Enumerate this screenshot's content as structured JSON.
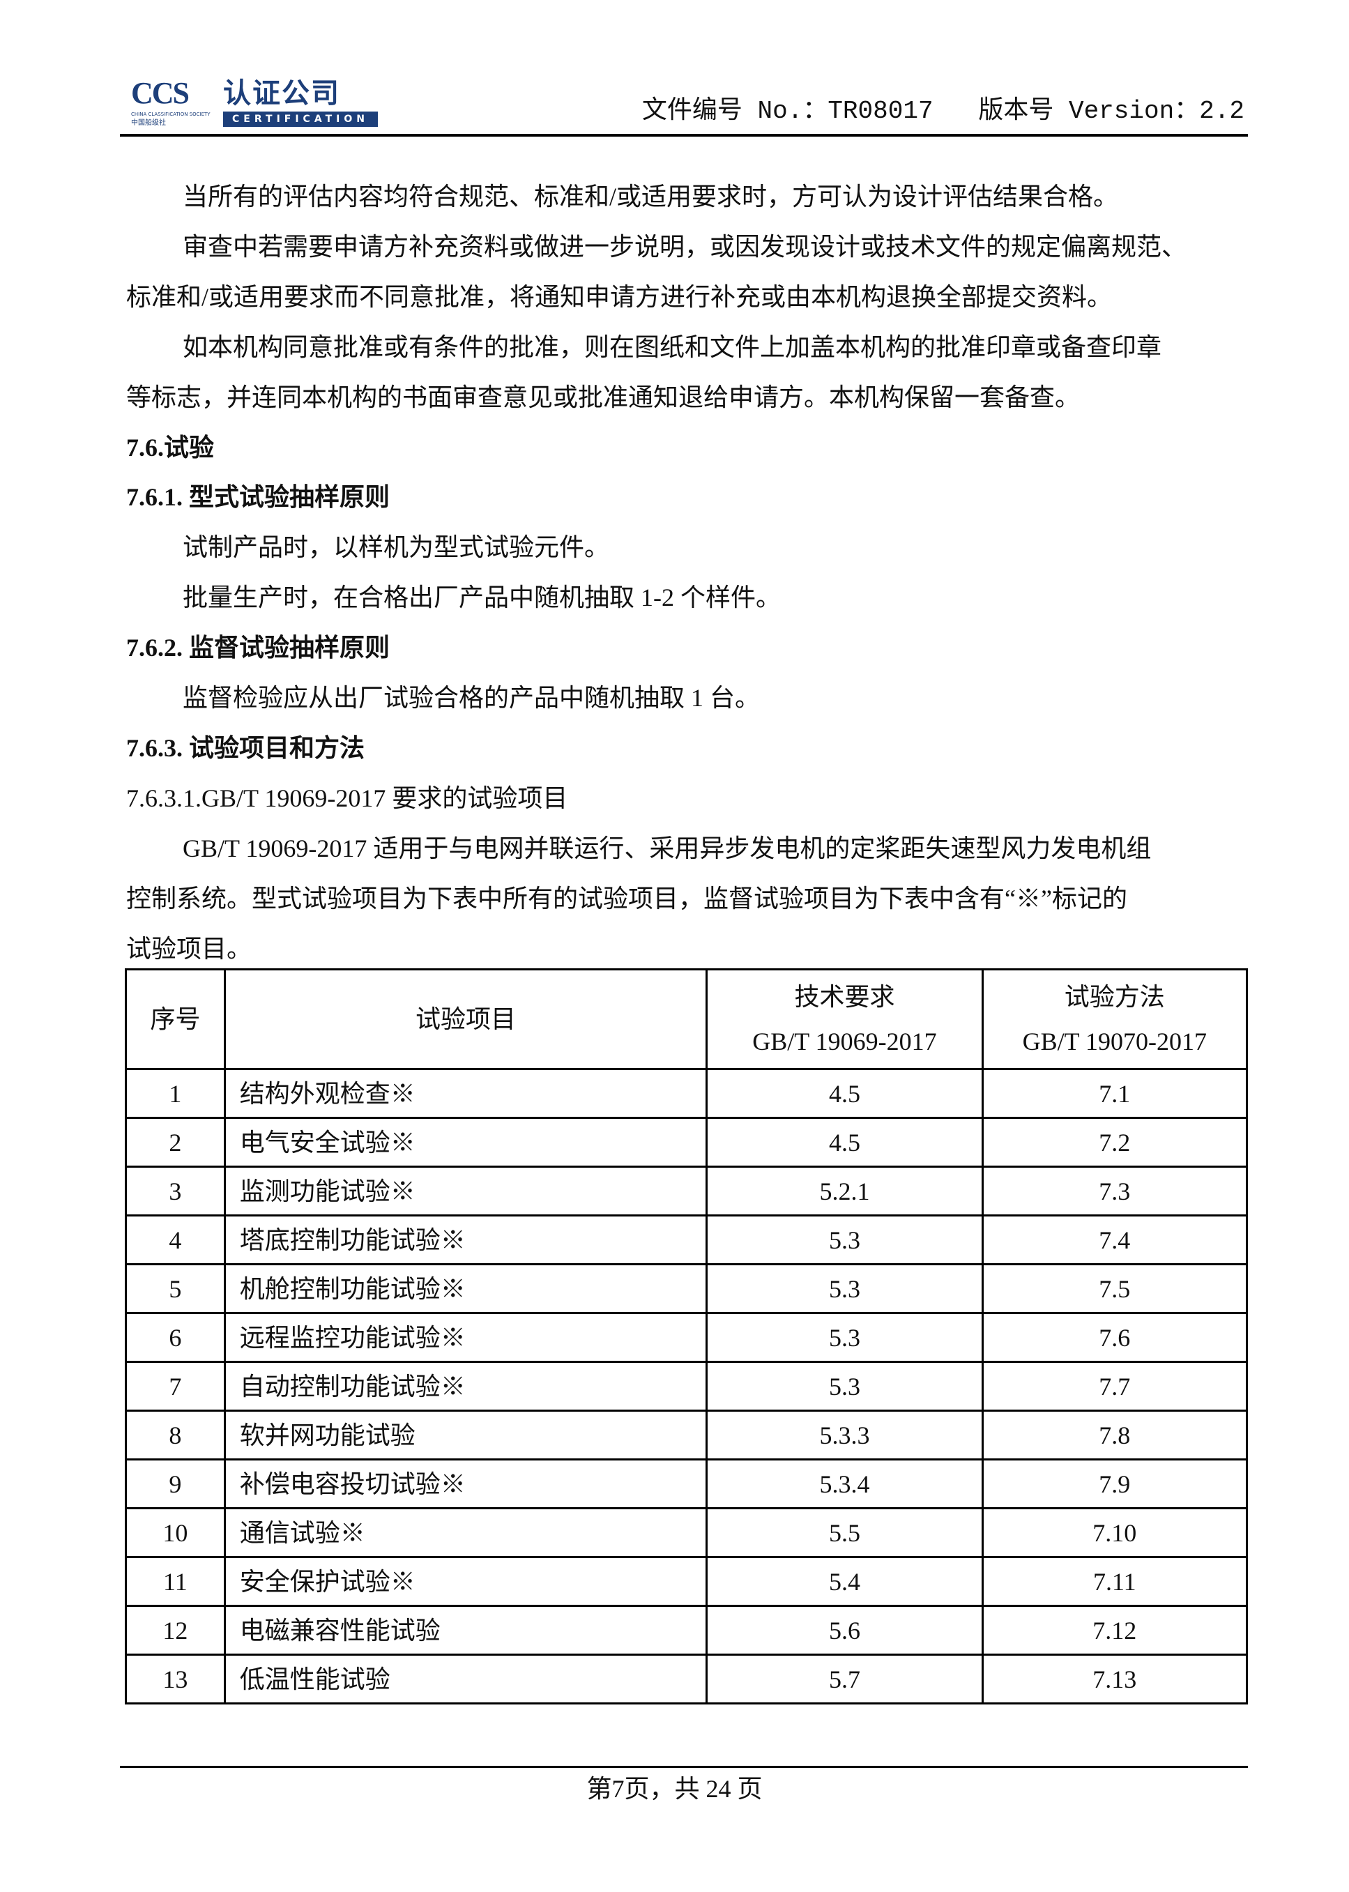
{
  "header": {
    "logo": {
      "ccs": "CCS",
      "name_cn": "认证公司",
      "name_en": "CERTIFICATION",
      "society_en": "CHINA CLASSIFICATION SOCIETY",
      "society_cn": "中国船级社"
    },
    "doc_info": "文件编号 No.：TR08017   版本号 Version：2.2"
  },
  "body": [
    {
      "text": "当所有的评估内容均符合规范、标准和/或适用要求时，方可认为设计评估结果合格。",
      "style": "ind"
    },
    {
      "text": "审查中若需要申请方补充资料或做进一步说明，或因发现设计或技术文件的规定偏离规范、",
      "style": "ind"
    },
    {
      "text": "标准和/或适用要求而不同意批准，将通知申请方进行补充或由本机构退换全部提交资料。",
      "style": "noind"
    },
    {
      "text": "如本机构同意批准或有条件的批准，则在图纸和文件上加盖本机构的批准印章或备查印章",
      "style": "ind"
    },
    {
      "text": "等标志，并连同本机构的书面审查意见或批准通知退给申请方。本机构保留一套备查。",
      "style": "noind"
    },
    {
      "text": "7.6.试验",
      "style": "heading"
    },
    {
      "text": "7.6.1.  型式试验抽样原则",
      "style": "heading"
    },
    {
      "text": "试制产品时，以样机为型式试验元件。",
      "style": "ind"
    },
    {
      "text": "批量生产时，在合格出厂产品中随机抽取 1-2 个样件。",
      "style": "ind"
    },
    {
      "text": "7.6.2.  监督试验抽样原则",
      "style": "heading"
    },
    {
      "text": "监督检验应从出厂试验合格的产品中随机抽取 1  台。",
      "style": "ind"
    },
    {
      "text": "7.6.3.  试验项目和方法",
      "style": "heading"
    },
    {
      "text": "7.6.3.1.GB/T 19069-2017  要求的试验项目",
      "style": "noind"
    },
    {
      "text": "GB/T 19069-2017 适用于与电网并联运行、采用异步发电机的定桨距失速型风力发电机组",
      "style": "ind"
    },
    {
      "text": "控制系统。型式试验项目为下表中所有的试验项目，监督试验项目为下表中含有“※”标记的",
      "style": "noind"
    },
    {
      "text": "试验项目。",
      "style": "noind"
    }
  ],
  "table": {
    "headers": {
      "no": "序号",
      "item": "试验项目",
      "req_title": "技术要求",
      "req_std": "GB/T 19069-2017",
      "method_title": "试验方法",
      "method_std": "GB/T 19070-2017"
    },
    "rows": [
      [
        "1",
        "结构外观检查※",
        "4.5",
        "7.1"
      ],
      [
        "2",
        "电气安全试验※",
        "4.5",
        "7.2"
      ],
      [
        "3",
        "监测功能试验※",
        "5.2.1",
        "7.3"
      ],
      [
        "4",
        "塔底控制功能试验※",
        "5.3",
        "7.4"
      ],
      [
        "5",
        "机舱控制功能试验※",
        "5.3",
        "7.5"
      ],
      [
        "6",
        "远程监控功能试验※",
        "5.3",
        "7.6"
      ],
      [
        "7",
        "自动控制功能试验※",
        "5.3",
        "7.7"
      ],
      [
        "8",
        "软并网功能试验",
        "5.3.3",
        "7.8"
      ],
      [
        "9",
        "补偿电容投切试验※",
        "5.3.4",
        "7.9"
      ],
      [
        "10",
        "通信试验※",
        "5.5",
        "7.10"
      ],
      [
        "11",
        "安全保护试验※",
        "5.4",
        "7.11"
      ],
      [
        "12",
        "电磁兼容性能试验",
        "5.6",
        "7.12"
      ],
      [
        "13",
        "低温性能试验",
        "5.7",
        "7.13"
      ]
    ]
  },
  "footer": {
    "page": "第7页，共 24 页"
  },
  "colors": {
    "brand": "#1d3f7a",
    "accent_red": "#c0242b"
  }
}
